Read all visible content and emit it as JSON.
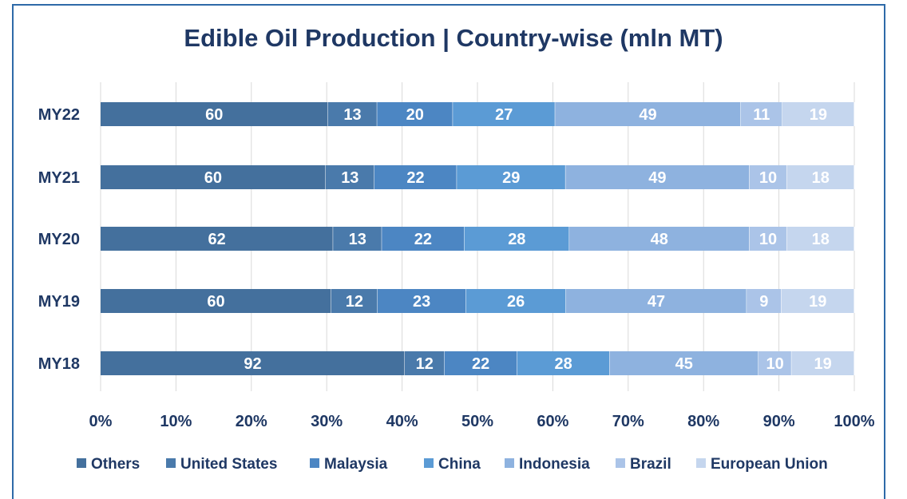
{
  "chart_data": {
    "type": "bar",
    "orientation": "horizontal",
    "stacked": "percent",
    "title": "Edible Oil Production | Country-wise (mln MT)",
    "categories": [
      "MY22",
      "MY21",
      "MY20",
      "MY19",
      "MY18"
    ],
    "series": [
      {
        "name": "Others",
        "color": "#44709d",
        "values": [
          60,
          60,
          62,
          60,
          92
        ]
      },
      {
        "name": "United States",
        "color": "#4a7aab",
        "values": [
          13,
          13,
          13,
          12,
          12
        ]
      },
      {
        "name": "Malaysia",
        "color": "#4c86c3",
        "values": [
          20,
          22,
          22,
          23,
          22
        ]
      },
      {
        "name": "China",
        "color": "#5b9bd5",
        "values": [
          27,
          29,
          28,
          26,
          28
        ]
      },
      {
        "name": "Indonesia",
        "color": "#8eb2df",
        "values": [
          49,
          49,
          48,
          47,
          45
        ]
      },
      {
        "name": "Brazil",
        "color": "#abc4e8",
        "values": [
          11,
          10,
          10,
          9,
          10
        ]
      },
      {
        "name": "European Union",
        "color": "#c5d6ee",
        "values": [
          19,
          18,
          18,
          19,
          19
        ]
      }
    ],
    "xticks": [
      "0%",
      "10%",
      "20%",
      "30%",
      "40%",
      "50%",
      "60%",
      "70%",
      "80%",
      "90%",
      "100%"
    ],
    "xlim": [
      0,
      100
    ],
    "grid": true,
    "legend": "bottom"
  }
}
